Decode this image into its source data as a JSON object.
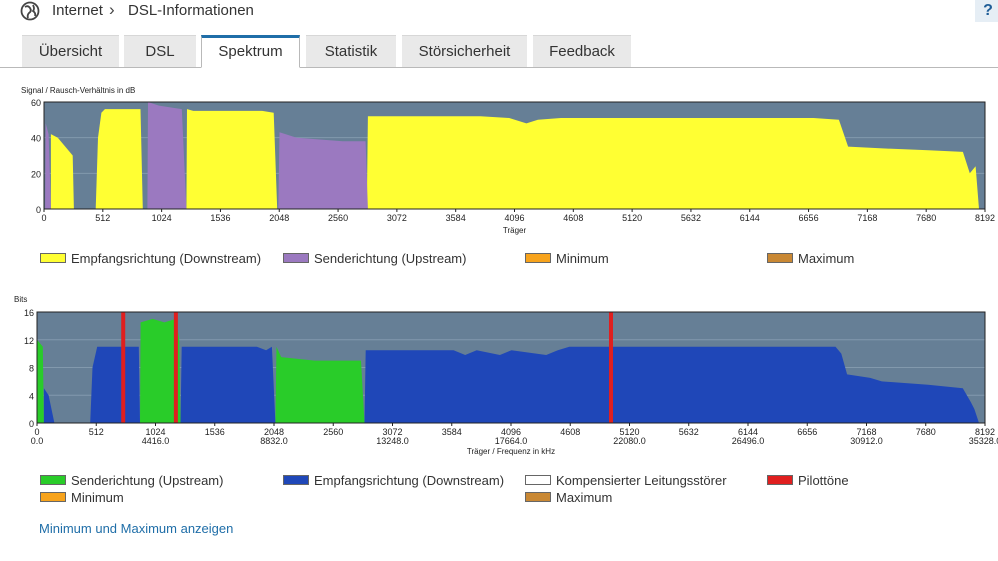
{
  "breadcrumb": {
    "home": "Internet",
    "current": "DSL-Informationen"
  },
  "help_label": "?",
  "tabs": [
    {
      "label": "Übersicht",
      "active": false
    },
    {
      "label": "DSL",
      "active": false
    },
    {
      "label": "Spektrum",
      "active": true
    },
    {
      "label": "Statistik",
      "active": false
    },
    {
      "label": "Störsicherheit",
      "active": false
    },
    {
      "label": "Feedback",
      "active": false
    }
  ],
  "colors": {
    "plot_bg": "#667f96",
    "downstream_yellow": "#ffff33",
    "upstream_purple": "#9b79c0",
    "upstream_green": "#29cc29",
    "downstream_blue": "#1f47b8",
    "pilot_red": "#e01f1f",
    "minimum_orange": "#f7a31c",
    "maximum_brown": "#c98834",
    "accent": "#1f6ea8"
  },
  "chart_data": [
    {
      "type": "area",
      "ylabel": "Signal / Rausch-Verhältnis in dB",
      "xlabel": "Träger",
      "xlim": [
        0,
        8192
      ],
      "ylim": [
        0,
        60
      ],
      "y_ticks": [
        "0",
        "20",
        "40",
        "60"
      ],
      "x_ticks": [
        "0",
        "512",
        "1024",
        "1536",
        "2048",
        "2560",
        "3072",
        "3584",
        "4096",
        "4608",
        "5120",
        "5632",
        "6144",
        "6656",
        "7168",
        "7680",
        "8192"
      ],
      "grid": true,
      "series": [
        {
          "name": "Empfangsrichtung (Downstream)",
          "color": "#ffff33",
          "segments": [
            [
              [
                60,
                0
              ],
              [
                60,
                42
              ],
              [
                120,
                40
              ],
              [
                250,
                30
              ],
              [
                260,
                0
              ]
            ],
            [
              [
                450,
                0
              ],
              [
                470,
                40
              ],
              [
                500,
                54
              ],
              [
                530,
                56
              ],
              [
                840,
                56
              ],
              [
                860,
                0
              ]
            ],
            [
              [
                1240,
                0
              ],
              [
                1245,
                56
              ],
              [
                1300,
                55
              ],
              [
                1900,
                55
              ],
              [
                2000,
                54
              ],
              [
                2030,
                0
              ]
            ],
            [
              [
                2810,
                0
              ],
              [
                2820,
                52
              ],
              [
                2950,
                52
              ],
              [
                3500,
                52
              ],
              [
                3800,
                52
              ],
              [
                4050,
                51
              ],
              [
                4200,
                48
              ],
              [
                4300,
                50
              ],
              [
                4500,
                51
              ],
              [
                5000,
                51
              ],
              [
                6000,
                51
              ],
              [
                6700,
                51
              ],
              [
                6920,
                50
              ],
              [
                7000,
                35
              ],
              [
                7300,
                34
              ],
              [
                7700,
                33
              ],
              [
                8000,
                32
              ],
              [
                8060,
                20
              ],
              [
                8110,
                24
              ],
              [
                8140,
                0
              ]
            ]
          ]
        },
        {
          "name": "Senderichtung (Upstream)",
          "color": "#9b79c0",
          "segments": [
            [
              [
                10,
                0
              ],
              [
                15,
                48
              ],
              [
                40,
                42
              ],
              [
                60,
                0
              ]
            ],
            [
              [
                900,
                0
              ],
              [
                905,
                60
              ],
              [
                1000,
                58
              ],
              [
                1200,
                56
              ],
              [
                1240,
                0
              ]
            ],
            [
              [
                2040,
                0
              ],
              [
                2050,
                43
              ],
              [
                2200,
                40
              ],
              [
                2600,
                38
              ],
              [
                2800,
                38
              ],
              [
                2820,
                0
              ]
            ]
          ]
        },
        {
          "name": "Minimum",
          "color": "#f7a31c",
          "segments": []
        },
        {
          "name": "Maximum",
          "color": "#c98834",
          "segments": []
        }
      ]
    },
    {
      "type": "area",
      "ylabel": "Bits",
      "xlabel": "Träger / Frequenz in kHz",
      "xlim": [
        0,
        8192
      ],
      "ylim": [
        0,
        16
      ],
      "y_ticks": [
        "0",
        "4",
        "8",
        "12",
        "16"
      ],
      "x_ticks": [
        "0",
        "512",
        "1024",
        "1536",
        "2048",
        "2560",
        "3072",
        "3584",
        "4096",
        "4608",
        "5120",
        "5632",
        "6144",
        "6656",
        "7168",
        "7680",
        "8192"
      ],
      "x_freq_ticks": [
        {
          "at": 0,
          "label": "0.0"
        },
        {
          "at": 1024,
          "label": "4416.0"
        },
        {
          "at": 2048,
          "label": "8832.0"
        },
        {
          "at": 3072,
          "label": "13248.0"
        },
        {
          "at": 4096,
          "label": "17664.0"
        },
        {
          "at": 5120,
          "label": "22080.0"
        },
        {
          "at": 6144,
          "label": "26496.0"
        },
        {
          "at": 7168,
          "label": "30912.0"
        },
        {
          "at": 8192,
          "label": "35328.0"
        }
      ],
      "grid": true,
      "series": [
        {
          "name": "Senderichtung (Upstream)",
          "color": "#29cc29",
          "segments": [
            [
              [
                0,
                0
              ],
              [
                0,
                12
              ],
              [
                50,
                11
              ],
              [
                60,
                0
              ]
            ],
            [
              [
                890,
                0
              ],
              [
                895,
                14.5
              ],
              [
                1000,
                15
              ],
              [
                1100,
                14.5
              ],
              [
                1200,
                15
              ],
              [
                1230,
                12
              ],
              [
                1240,
                0
              ]
            ],
            [
              [
                2060,
                0
              ],
              [
                2070,
                11
              ],
              [
                2110,
                9.5
              ],
              [
                2400,
                9
              ],
              [
                2800,
                9
              ],
              [
                2830,
                0
              ]
            ]
          ]
        },
        {
          "name": "Empfangsrichtung (Downstream)",
          "color": "#1f47b8",
          "segments": [
            [
              [
                60,
                0
              ],
              [
                60,
                5
              ],
              [
                100,
                4
              ],
              [
                150,
                0
              ]
            ],
            [
              [
                460,
                0
              ],
              [
                480,
                8
              ],
              [
                520,
                11
              ],
              [
                880,
                11
              ],
              [
                890,
                0
              ]
            ],
            [
              [
                1240,
                0
              ],
              [
                1250,
                11
              ],
              [
                1900,
                11
              ],
              [
                1980,
                10.5
              ],
              [
                2030,
                11
              ],
              [
                2060,
                0
              ]
            ],
            [
              [
                2830,
                0
              ],
              [
                2840,
                10.5
              ],
              [
                3000,
                10.5
              ],
              [
                3600,
                10.5
              ],
              [
                3700,
                9.8
              ],
              [
                3800,
                10.5
              ],
              [
                4000,
                9.8
              ],
              [
                4100,
                10.5
              ],
              [
                4400,
                9.8
              ],
              [
                4500,
                10.5
              ],
              [
                4600,
                11
              ],
              [
                5000,
                11
              ],
              [
                6000,
                11
              ],
              [
                6900,
                11
              ],
              [
                6950,
                10
              ],
              [
                7000,
                7
              ],
              [
                7200,
                6.5
              ],
              [
                7300,
                6
              ],
              [
                7700,
                5.5
              ],
              [
                8000,
                5
              ],
              [
                8070,
                3
              ],
              [
                8100,
                2
              ],
              [
                8140,
                0
              ]
            ]
          ]
        },
        {
          "name": "Kompensierter Leitungsstörer",
          "color": "#ffffff",
          "segments": []
        },
        {
          "name": "Pilottöne",
          "color": "#e01f1f",
          "markers": [
            745,
            1200,
            4960
          ]
        },
        {
          "name": "Minimum",
          "color": "#f7a31c",
          "segments": []
        },
        {
          "name": "Maximum",
          "color": "#c98834",
          "segments": []
        }
      ]
    }
  ],
  "link_label": "Minimum und Maximum anzeigen"
}
